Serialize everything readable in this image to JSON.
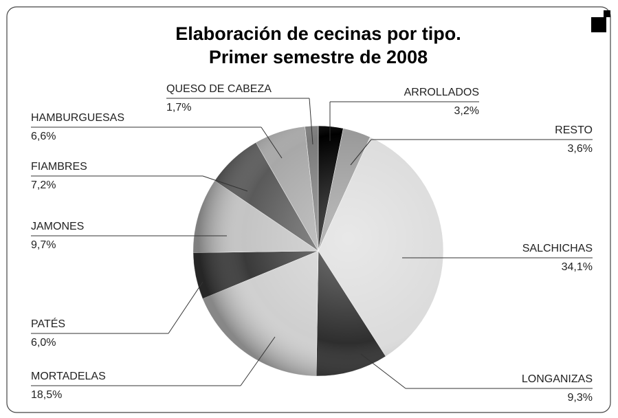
{
  "chart_data": {
    "type": "pie",
    "title": [
      "Elaboración de cecinas por tipo.",
      "Primer semestre de 2008"
    ],
    "categories": [
      "ARROLLADOS",
      "RESTO",
      "SALCHICHAS",
      "LONGANIZAS",
      "MORTADELAS",
      "PATÉS",
      "JAMONES",
      "FIAMBRES",
      "HAMBURGUESAS",
      "QUESO DE CABEZA"
    ],
    "values": [
      3.2,
      3.6,
      34.1,
      9.3,
      18.5,
      6.0,
      9.7,
      7.2,
      6.6,
      1.7
    ],
    "value_labels": [
      "3,2%",
      "3,6%",
      "34,1%",
      "9,3%",
      "18,5%",
      "6,0%",
      "9,7%",
      "7,2%",
      "6,6%",
      "1,7%"
    ],
    "colors": [
      "#000000",
      "#9a9a9a",
      "#dcdcdc",
      "#2e2e2e",
      "#cfcfcf",
      "#3a3a3a",
      "#c4c4c4",
      "#5a5a5a",
      "#a8a8a8",
      "#7a7a7a"
    ]
  }
}
